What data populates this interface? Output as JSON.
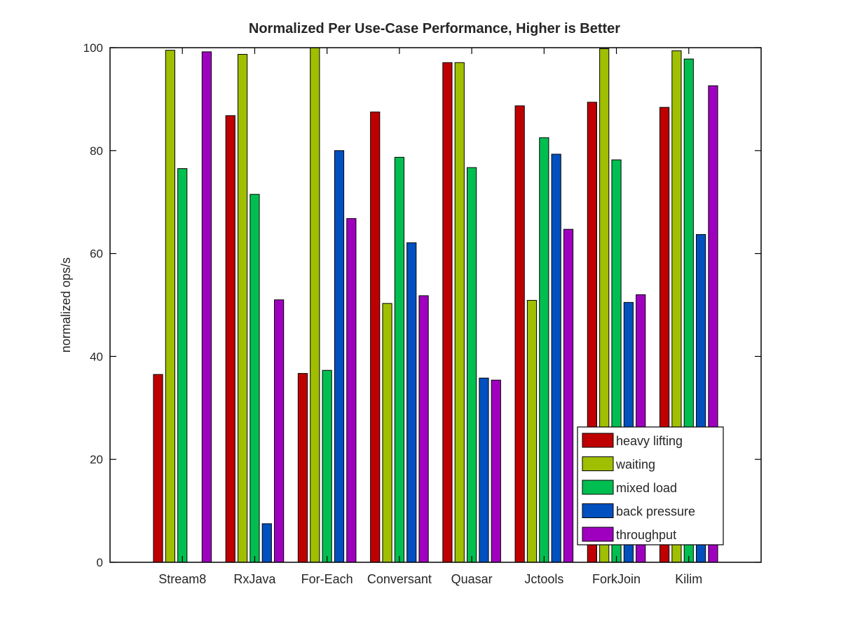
{
  "chart_data": {
    "type": "bar",
    "title": "Normalized Per Use-Case Performance, Higher is Better",
    "xlabel": "",
    "ylabel": "normalized ops/s",
    "ylim": [
      0,
      100
    ],
    "yticks": [
      0,
      20,
      40,
      60,
      80,
      100
    ],
    "grid": false,
    "legend_position": "bottom-right",
    "categories": [
      "Stream8",
      "RxJava",
      "For-Each",
      "Conversant",
      "Quasar",
      "Jctools",
      "ForkJoin",
      "Kilim"
    ],
    "series": [
      {
        "name": "heavy lifting",
        "color": "#bf0000",
        "values": [
          36.5,
          86.8,
          36.7,
          87.5,
          97.1,
          88.7,
          89.4,
          88.4
        ]
      },
      {
        "name": "waiting",
        "color": "#9fbf00",
        "values": [
          99.5,
          98.7,
          100.0,
          50.3,
          97.1,
          50.9,
          99.8,
          99.4
        ]
      },
      {
        "name": "mixed load",
        "color": "#00bf50",
        "values": [
          76.5,
          71.5,
          37.3,
          78.7,
          76.7,
          82.5,
          78.2,
          97.8
        ]
      },
      {
        "name": "back pressure",
        "color": "#0050bf",
        "values": [
          0,
          7.5,
          80.0,
          62.1,
          35.8,
          79.3,
          50.5,
          63.7
        ]
      },
      {
        "name": "throughput",
        "color": "#9f00bf",
        "values": [
          99.2,
          51.0,
          66.8,
          51.8,
          35.4,
          64.7,
          52.0,
          92.6
        ]
      }
    ]
  }
}
